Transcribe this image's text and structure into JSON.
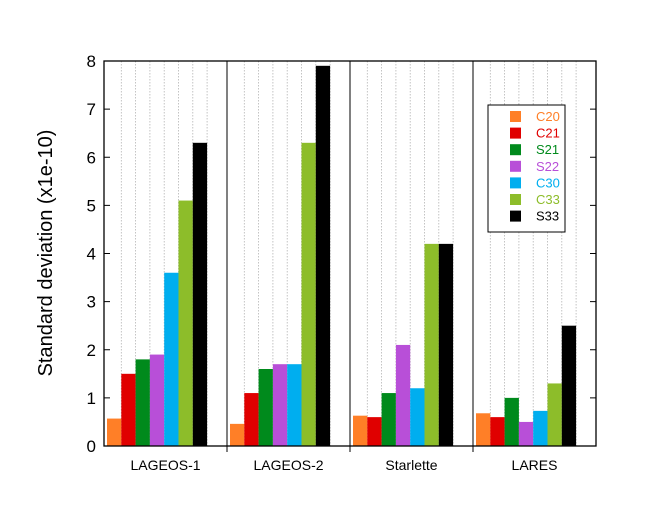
{
  "chart_data": {
    "type": "bar",
    "title": "",
    "xlabel": "",
    "ylabel": "Standard deviation (x1e-10)",
    "ylim": [
      0,
      8
    ],
    "yticks": [
      "0",
      "1",
      "2",
      "3",
      "4",
      "5",
      "6",
      "7",
      "8"
    ],
    "categories": [
      "LAGEOS-1",
      "LAGEOS-2",
      "Starlette",
      "LARES"
    ],
    "series": [
      {
        "name": "C20",
        "color": "#ff7f27",
        "values": [
          0.57,
          0.46,
          0.63,
          0.68
        ]
      },
      {
        "name": "C21",
        "color": "#e00000",
        "values": [
          1.5,
          1.1,
          0.6,
          0.6
        ]
      },
      {
        "name": "S21",
        "color": "#008a1c",
        "values": [
          1.8,
          1.6,
          1.1,
          1.0
        ]
      },
      {
        "name": "S22",
        "color": "#b84fd8",
        "values": [
          1.9,
          1.7,
          2.1,
          0.5
        ]
      },
      {
        "name": "C30",
        "color": "#00aeef",
        "values": [
          3.6,
          1.7,
          1.2,
          0.73
        ]
      },
      {
        "name": "C33",
        "color": "#8dbd2a",
        "values": [
          5.1,
          6.3,
          4.2,
          1.3
        ]
      },
      {
        "name": "S33",
        "color": "#000000",
        "values": [
          6.3,
          7.9,
          4.2,
          2.5
        ]
      }
    ],
    "legend_position": "top-right",
    "grid": "vertical dotted"
  }
}
